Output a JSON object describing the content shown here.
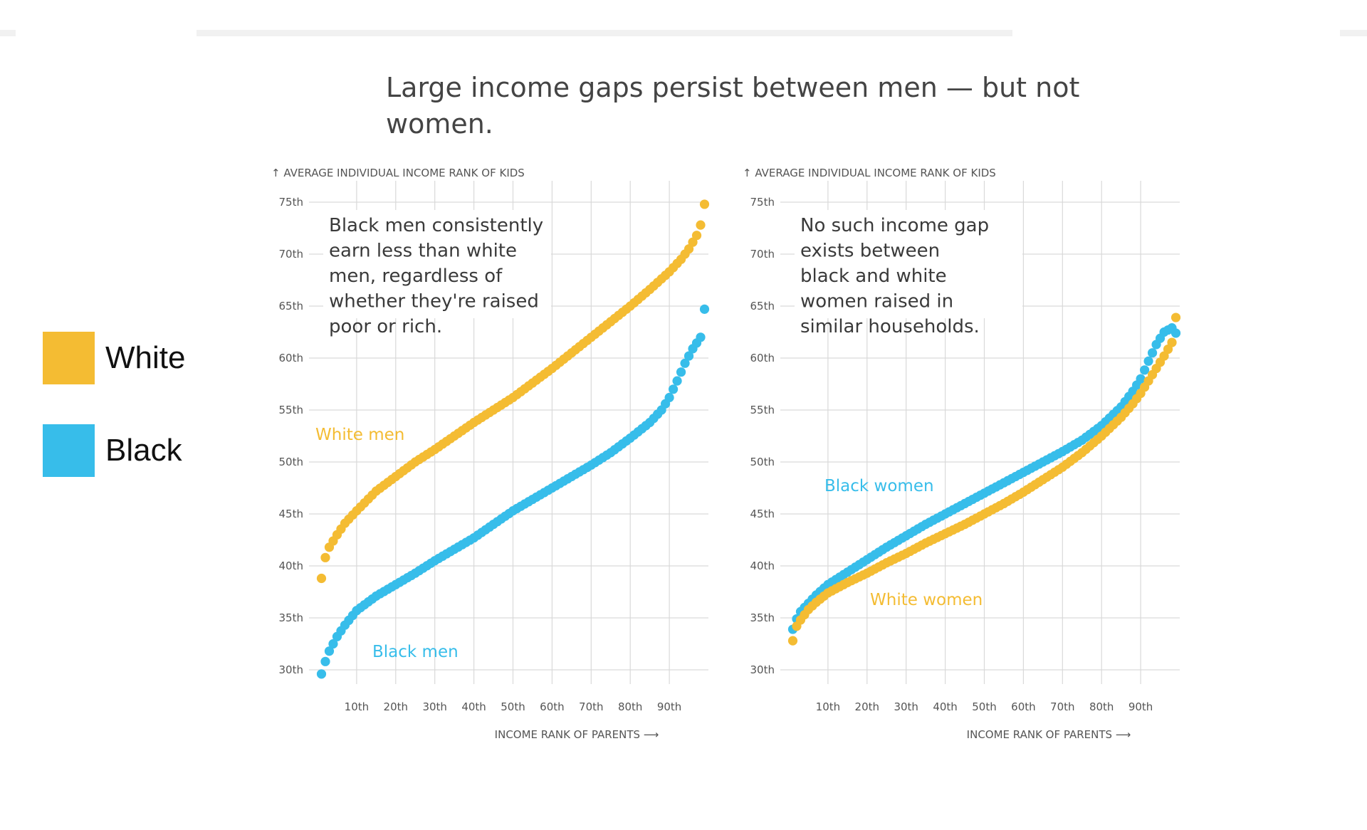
{
  "headline": "Large income gaps persist between men — but not women.",
  "colors": {
    "White": "#F4BC33",
    "Black": "#37BDEA"
  },
  "legend": [
    {
      "label": "White",
      "color": "#F4BC33"
    },
    {
      "label": "Black",
      "color": "#37BDEA"
    }
  ],
  "chart_data": [
    {
      "type": "scatter",
      "ylabel": "AVERAGE INDIVIDUAL INCOME RANK OF KIDS",
      "xlabel": "INCOME RANK OF PARENTS",
      "xlim": [
        0,
        100
      ],
      "ylim": [
        30,
        75
      ],
      "xticks": [
        "10th",
        "20th",
        "30th",
        "40th",
        "50th",
        "60th",
        "70th",
        "80th",
        "90th"
      ],
      "yticks": [
        "30th",
        "35th",
        "40th",
        "45th",
        "50th",
        "55th",
        "60th",
        "65th",
        "70th",
        "75th"
      ],
      "grid": true,
      "annotation": "Black men consistently earn less than white men, regardless of whether they're raised poor or rich.",
      "series": [
        {
          "name": "White men",
          "color": "White",
          "anchors": [
            [
              1,
              38.8
            ],
            [
              2,
              40.8
            ],
            [
              3,
              41.8
            ],
            [
              5,
              43.0
            ],
            [
              7,
              44.1
            ],
            [
              10,
              45.3
            ],
            [
              15,
              47.2
            ],
            [
              20,
              48.6
            ],
            [
              25,
              50.0
            ],
            [
              30,
              51.2
            ],
            [
              35,
              52.5
            ],
            [
              40,
              53.8
            ],
            [
              45,
              55.0
            ],
            [
              50,
              56.2
            ],
            [
              55,
              57.6
            ],
            [
              60,
              59.0
            ],
            [
              65,
              60.5
            ],
            [
              70,
              62.0
            ],
            [
              75,
              63.5
            ],
            [
              80,
              65.0
            ],
            [
              85,
              66.6
            ],
            [
              90,
              68.3
            ],
            [
              93,
              69.5
            ],
            [
              95,
              70.5
            ],
            [
              97,
              71.8
            ],
            [
              98,
              72.8
            ],
            [
              99,
              74.8
            ]
          ]
        },
        {
          "name": "Black men",
          "color": "Black",
          "anchors": [
            [
              1,
              29.6
            ],
            [
              2,
              30.8
            ],
            [
              3,
              31.8
            ],
            [
              5,
              33.2
            ],
            [
              7,
              34.3
            ],
            [
              10,
              35.7
            ],
            [
              15,
              37.1
            ],
            [
              20,
              38.2
            ],
            [
              25,
              39.3
            ],
            [
              30,
              40.5
            ],
            [
              35,
              41.6
            ],
            [
              40,
              42.7
            ],
            [
              45,
              44.0
            ],
            [
              50,
              45.3
            ],
            [
              55,
              46.4
            ],
            [
              60,
              47.5
            ],
            [
              65,
              48.6
            ],
            [
              70,
              49.7
            ],
            [
              75,
              50.9
            ],
            [
              80,
              52.3
            ],
            [
              85,
              53.8
            ],
            [
              88,
              55.0
            ],
            [
              90,
              56.2
            ],
            [
              92,
              57.8
            ],
            [
              94,
              59.5
            ],
            [
              96,
              60.9
            ],
            [
              98,
              62.0
            ],
            [
              99,
              64.7
            ]
          ]
        }
      ]
    },
    {
      "type": "scatter",
      "ylabel": "AVERAGE INDIVIDUAL INCOME RANK OF KIDS",
      "xlabel": "INCOME RANK OF PARENTS",
      "xlim": [
        0,
        100
      ],
      "ylim": [
        30,
        75
      ],
      "xticks": [
        "10th",
        "20th",
        "30th",
        "40th",
        "50th",
        "60th",
        "70th",
        "80th",
        "90th"
      ],
      "yticks": [
        "30th",
        "35th",
        "40th",
        "45th",
        "50th",
        "55th",
        "60th",
        "65th",
        "70th",
        "75th"
      ],
      "grid": true,
      "annotation": "No such income gap exists between black and white women raised in similar households.",
      "series": [
        {
          "name": "Black women",
          "color": "Black",
          "anchors": [
            [
              1,
              33.9
            ],
            [
              2,
              34.9
            ],
            [
              3,
              35.6
            ],
            [
              5,
              36.4
            ],
            [
              7,
              37.2
            ],
            [
              10,
              38.2
            ],
            [
              15,
              39.4
            ],
            [
              20,
              40.6
            ],
            [
              25,
              41.8
            ],
            [
              30,
              42.9
            ],
            [
              35,
              44.0
            ],
            [
              40,
              45.0
            ],
            [
              45,
              46.0
            ],
            [
              50,
              47.0
            ],
            [
              55,
              48.0
            ],
            [
              60,
              49.0
            ],
            [
              65,
              50.0
            ],
            [
              70,
              51.0
            ],
            [
              75,
              52.1
            ],
            [
              80,
              53.5
            ],
            [
              85,
              55.3
            ],
            [
              88,
              56.8
            ],
            [
              90,
              58.0
            ],
            [
              92,
              59.7
            ],
            [
              94,
              61.3
            ],
            [
              96,
              62.5
            ],
            [
              98,
              62.9
            ],
            [
              99,
              62.4
            ]
          ]
        },
        {
          "name": "White women",
          "color": "White",
          "anchors": [
            [
              1,
              32.8
            ],
            [
              2,
              34.2
            ],
            [
              3,
              34.8
            ],
            [
              5,
              35.8
            ],
            [
              7,
              36.5
            ],
            [
              10,
              37.4
            ],
            [
              15,
              38.4
            ],
            [
              20,
              39.3
            ],
            [
              25,
              40.3
            ],
            [
              30,
              41.2
            ],
            [
              35,
              42.2
            ],
            [
              40,
              43.1
            ],
            [
              45,
              44.0
            ],
            [
              50,
              45.0
            ],
            [
              55,
              46.0
            ],
            [
              60,
              47.1
            ],
            [
              65,
              48.3
            ],
            [
              70,
              49.5
            ],
            [
              75,
              50.9
            ],
            [
              80,
              52.5
            ],
            [
              85,
              54.3
            ],
            [
              88,
              55.6
            ],
            [
              90,
              56.6
            ],
            [
              92,
              57.8
            ],
            [
              94,
              59.0
            ],
            [
              96,
              60.2
            ],
            [
              98,
              61.5
            ],
            [
              99,
              63.9
            ]
          ]
        }
      ]
    }
  ]
}
